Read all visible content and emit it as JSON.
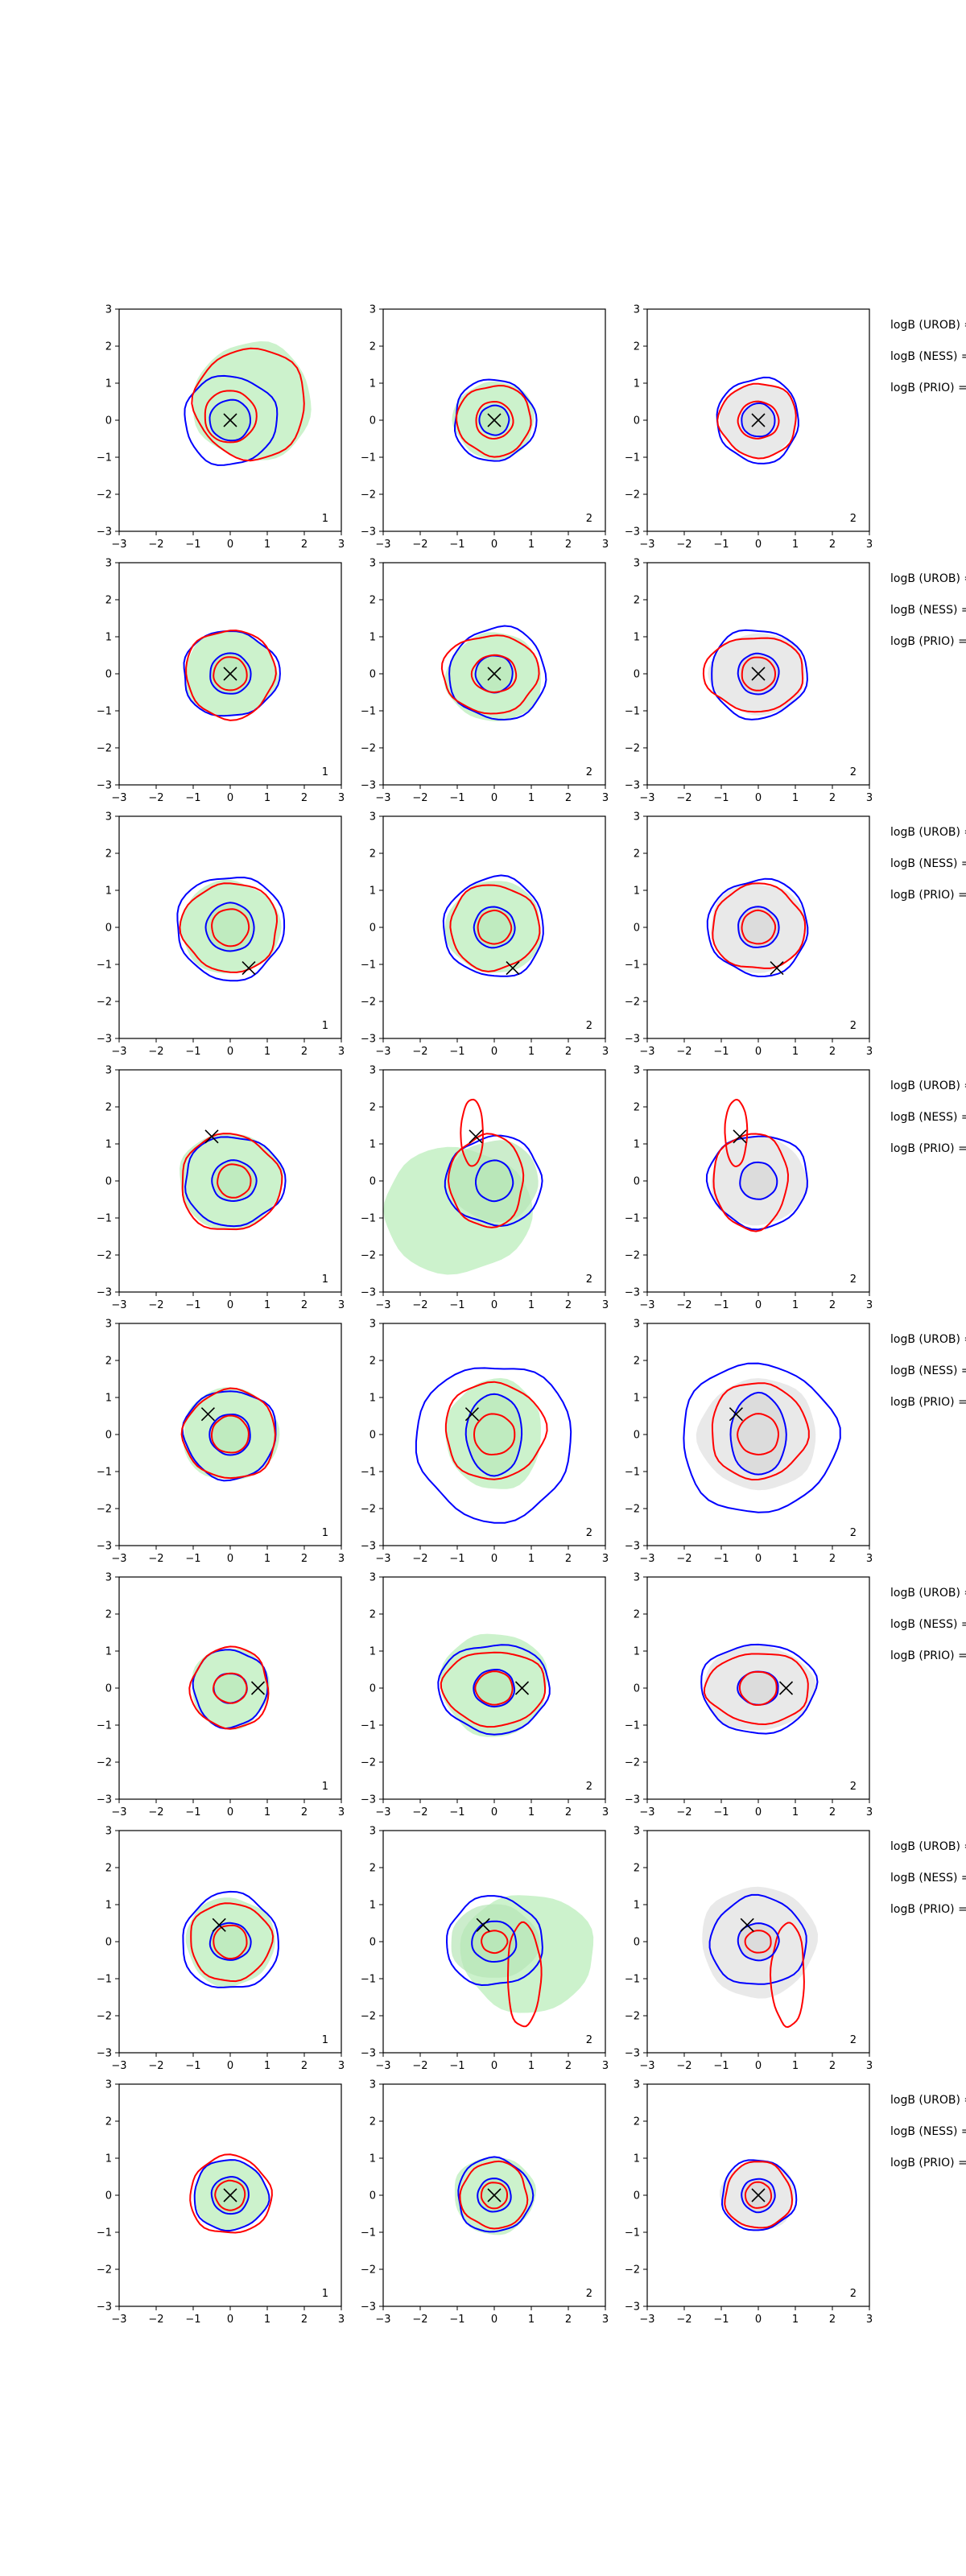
{
  "figure": {
    "xlim": [
      -3,
      3
    ],
    "ylim": [
      -3,
      3
    ],
    "ticks": [
      -3,
      -2,
      -1,
      0,
      1,
      2,
      3
    ],
    "row_labels": [
      "logB (UROB) =",
      "logB (NESS) =",
      "logB (PRIO) ="
    ]
  },
  "colors": {
    "posterior_fill": "#ccf2cc",
    "posterior_fill_dark": "#b6e6b6",
    "prior_fill": "#e9e9e9",
    "prior_fill_dark": "#d4d4d4",
    "contour_a": "#0000ff",
    "contour_b": "#ff0000",
    "marker": "#000000"
  },
  "chart_data": {
    "type": "contour",
    "description_columns": 3,
    "rows": [
      {
        "marker": [
          0.0,
          0.0
        ],
        "panels": [
          {
            "fill": "green",
            "corner_label": "1",
            "outer_blue": [
              0.0,
              0.0,
              1.25,
              1.2
            ],
            "outer_red": [
              0.55,
              0.45,
              1.5,
              1.5
            ],
            "inner_blue": [
              0.0,
              0.0,
              0.55,
              0.55
            ],
            "inner_red": [
              0.0,
              0.1,
              0.7,
              0.7
            ],
            "fill_shape": [
              0.6,
              0.5,
              1.6,
              1.6
            ]
          },
          {
            "fill": "green",
            "corner_label": "2",
            "outer_blue": [
              0.0,
              0.0,
              1.1,
              1.1
            ],
            "outer_red": [
              0.0,
              0.0,
              1.0,
              0.95
            ],
            "inner_blue": [
              0.0,
              0.0,
              0.4,
              0.4
            ],
            "inner_red": [
              0.0,
              0.0,
              0.5,
              0.5
            ],
            "fill_shape": [
              0.0,
              0.0,
              1.1,
              1.05
            ]
          },
          {
            "fill": "gray",
            "corner_label": "2",
            "outer_blue": [
              0.0,
              0.0,
              1.1,
              1.15
            ],
            "outer_red": [
              0.0,
              0.0,
              1.05,
              1.0
            ],
            "inner_blue": [
              0.0,
              0.0,
              0.45,
              0.45
            ],
            "inner_red": [
              0.0,
              0.0,
              0.55,
              0.5
            ],
            "fill_shape": [
              0.0,
              0.0,
              1.05,
              1.0
            ]
          }
        ]
      },
      {
        "marker": [
          0.0,
          0.0
        ],
        "panels": [
          {
            "fill": "green",
            "corner_label": "1",
            "outer_blue": [
              0.0,
              0.0,
              1.3,
              1.15
            ],
            "outer_red": [
              0.0,
              0.0,
              1.2,
              1.2
            ],
            "inner_blue": [
              0.0,
              0.0,
              0.55,
              0.55
            ],
            "inner_red": [
              0.0,
              0.0,
              0.45,
              0.45
            ],
            "fill_shape": [
              0.0,
              0.0,
              1.25,
              1.15
            ]
          },
          {
            "fill": "green",
            "corner_label": "2",
            "outer_blue": [
              0.1,
              0.0,
              1.3,
              1.25
            ],
            "outer_red": [
              -0.1,
              0.0,
              1.3,
              1.05
            ],
            "inner_blue": [
              0.0,
              0.0,
              0.5,
              0.5
            ],
            "inner_red": [
              0.0,
              0.0,
              0.6,
              0.5
            ],
            "fill_shape": [
              0.0,
              -0.1,
              1.3,
              1.2
            ]
          },
          {
            "fill": "gray",
            "corner_label": "2",
            "outer_blue": [
              0.0,
              0.0,
              1.3,
              1.2
            ],
            "outer_red": [
              -0.1,
              0.0,
              1.35,
              1.0
            ],
            "inner_blue": [
              0.0,
              0.0,
              0.55,
              0.55
            ],
            "inner_red": [
              0.0,
              0.0,
              0.45,
              0.45
            ],
            "fill_shape": [
              0.0,
              0.0,
              1.3,
              1.1
            ]
          }
        ]
      },
      {
        "marker": [
          0.5,
          -1.1
        ],
        "panels": [
          {
            "fill": "green",
            "corner_label": "1",
            "outer_blue": [
              0.0,
              0.0,
              1.45,
              1.4
            ],
            "outer_red": [
              0.0,
              0.0,
              1.3,
              1.2
            ],
            "inner_blue": [
              0.0,
              0.0,
              0.65,
              0.65
            ],
            "inner_red": [
              0.0,
              0.0,
              0.5,
              0.5
            ],
            "fill_shape": [
              0.0,
              0.0,
              1.35,
              1.25
            ]
          },
          {
            "fill": "green",
            "corner_label": "2",
            "outer_blue": [
              0.0,
              0.0,
              1.35,
              1.35
            ],
            "outer_red": [
              0.0,
              0.0,
              1.2,
              1.15
            ],
            "inner_blue": [
              0.0,
              0.0,
              0.55,
              0.55
            ],
            "inner_red": [
              0.0,
              0.0,
              0.45,
              0.45
            ],
            "fill_shape": [
              0.0,
              0.0,
              1.3,
              1.25
            ]
          },
          {
            "fill": "gray",
            "corner_label": "2",
            "outer_blue": [
              0.0,
              0.0,
              1.35,
              1.3
            ],
            "outer_red": [
              0.0,
              0.0,
              1.25,
              1.15
            ],
            "inner_blue": [
              0.0,
              0.0,
              0.55,
              0.55
            ],
            "inner_red": [
              0.0,
              0.0,
              0.45,
              0.45
            ],
            "fill_shape": [
              0.0,
              0.0,
              1.3,
              1.2
            ]
          }
        ]
      },
      {
        "marker": [
          -0.5,
          1.2
        ],
        "panels": [
          {
            "fill": "green",
            "corner_label": "1",
            "outer_blue": [
              0.1,
              0.0,
              1.35,
              1.2
            ],
            "outer_red": [
              0.0,
              -0.05,
              1.35,
              1.3
            ],
            "inner_blue": [
              0.1,
              0.0,
              0.6,
              0.55
            ],
            "inner_red": [
              0.1,
              0.0,
              0.45,
              0.45
            ],
            "fill_shape": [
              0.0,
              0.0,
              1.4,
              1.3
            ]
          },
          {
            "fill": "green",
            "corner_label": "2",
            "outer_blue": [
              0.0,
              0.0,
              1.3,
              1.2
            ],
            "outer_red": [
              -0.2,
              0.0,
              1.0,
              1.25
            ],
            "inner_blue": [
              0.0,
              0.0,
              0.5,
              0.55
            ],
            "inner_red": [
              -0.6,
              1.3,
              0.3,
              0.9
            ],
            "fill_shape": [
              -1.0,
              -0.8,
              2.0,
              1.7
            ],
            "fill_extra": [
              0.0,
              0.0,
              1.2,
              1.1
            ]
          },
          {
            "fill": "gray",
            "corner_label": "2",
            "outer_blue": [
              0.0,
              0.0,
              1.35,
              1.25
            ],
            "outer_red": [
              -0.2,
              0.0,
              1.0,
              1.3
            ],
            "inner_blue": [
              0.0,
              0.0,
              0.5,
              0.5
            ],
            "inner_red": [
              -0.6,
              1.3,
              0.3,
              0.9
            ],
            "fill_shape": [
              0.0,
              0.0,
              1.3,
              1.2
            ]
          }
        ]
      },
      {
        "marker": [
          -0.6,
          0.55
        ],
        "panels": [
          {
            "fill": "green",
            "corner_label": "1",
            "outer_blue": [
              0.0,
              0.0,
              1.25,
              1.2
            ],
            "outer_red": [
              0.0,
              0.0,
              1.25,
              1.2
            ],
            "inner_blue": [
              0.0,
              0.0,
              0.55,
              0.55
            ],
            "inner_red": [
              0.0,
              0.0,
              0.5,
              0.5
            ],
            "fill_shape": [
              0.0,
              0.0,
              1.3,
              1.25
            ]
          },
          {
            "fill": "green",
            "corner_label": "2",
            "outer_blue": [
              0.0,
              -0.2,
              2.1,
              2.1
            ],
            "outer_red": [
              0.0,
              0.1,
              1.35,
              1.3
            ],
            "inner_blue": [
              0.0,
              0.0,
              0.75,
              1.1
            ],
            "inner_red": [
              0.0,
              0.0,
              0.55,
              0.55
            ],
            "fill_shape": [
              0.0,
              0.0,
              1.3,
              1.5
            ]
          },
          {
            "fill": "gray",
            "corner_label": "2",
            "outer_blue": [
              0.0,
              -0.1,
              2.1,
              2.0
            ],
            "outer_red": [
              0.0,
              0.1,
              1.3,
              1.3
            ],
            "inner_blue": [
              0.0,
              0.0,
              0.75,
              1.1
            ],
            "inner_red": [
              0.0,
              0.0,
              0.55,
              0.55
            ],
            "fill_shape": [
              0.0,
              0.0,
              1.6,
              1.5
            ]
          }
        ]
      },
      {
        "marker": [
          0.75,
          0.0
        ],
        "panels": [
          {
            "fill": "green",
            "corner_label": "1",
            "outer_blue": [
              0.0,
              0.0,
              1.0,
              1.05
            ],
            "outer_red": [
              0.0,
              0.0,
              1.05,
              1.1
            ],
            "inner_blue": [
              0.0,
              0.0,
              0.45,
              0.4
            ],
            "inner_red": [
              0.0,
              0.0,
              0.45,
              0.4
            ],
            "fill_shape": [
              0.0,
              0.0,
              1.05,
              1.1
            ]
          },
          {
            "fill": "green",
            "corner_label": "2",
            "outer_blue": [
              0.0,
              0.0,
              1.5,
              1.2
            ],
            "outer_red": [
              0.0,
              0.0,
              1.4,
              1.0
            ],
            "inner_blue": [
              0.0,
              0.0,
              0.55,
              0.5
            ],
            "inner_red": [
              0.0,
              0.0,
              0.5,
              0.45
            ],
            "fill_shape": [
              0.0,
              0.1,
              1.45,
              1.4
            ]
          },
          {
            "fill": "gray",
            "corner_label": "2",
            "outer_blue": [
              0.0,
              0.0,
              1.55,
              1.2
            ],
            "outer_red": [
              0.0,
              0.0,
              1.4,
              0.95
            ],
            "inner_blue": [
              0.0,
              0.0,
              0.55,
              0.45
            ],
            "inner_red": [
              0.0,
              0.0,
              0.5,
              0.45
            ],
            "fill_shape": [
              0.0,
              0.0,
              1.5,
              1.15
            ]
          }
        ]
      },
      {
        "marker": [
          -0.3,
          0.45
        ],
        "panels": [
          {
            "fill": "green",
            "corner_label": "1",
            "outer_blue": [
              0.0,
              0.0,
              1.3,
              1.3
            ],
            "outer_red": [
              0.0,
              0.0,
              1.1,
              1.05
            ],
            "inner_blue": [
              0.0,
              0.0,
              0.55,
              0.5
            ],
            "inner_red": [
              0.0,
              0.0,
              0.45,
              0.45
            ],
            "fill_shape": [
              0.0,
              0.0,
              1.2,
              1.2
            ]
          },
          {
            "fill": "green",
            "corner_label": "2",
            "outer_blue": [
              0.0,
              0.0,
              1.3,
              1.2
            ],
            "outer_red": [
              0.8,
              -0.9,
              0.45,
              1.4
            ],
            "inner_blue": [
              0.0,
              0.0,
              0.6,
              0.55
            ],
            "inner_red": [
              0.0,
              0.0,
              0.35,
              0.3
            ],
            "fill_shape": [
              0.9,
              -0.3,
              1.8,
              1.6
            ],
            "fill_extra": [
              0.0,
              0.0,
              1.2,
              1.0
            ]
          },
          {
            "fill": "gray",
            "corner_label": "2",
            "outer_blue": [
              0.0,
              0.0,
              1.3,
              1.2
            ],
            "outer_red": [
              0.8,
              -0.9,
              0.45,
              1.4
            ],
            "inner_blue": [
              0.0,
              0.0,
              0.55,
              0.5
            ],
            "inner_red": [
              0.0,
              0.0,
              0.35,
              0.3
            ],
            "fill_shape": [
              0.0,
              0.0,
              1.55,
              1.5
            ]
          }
        ]
      },
      {
        "marker": [
          0.0,
          0.0
        ],
        "panels": [
          {
            "fill": "green",
            "corner_label": "1",
            "outer_blue": [
              0.0,
              0.0,
              1.0,
              0.95
            ],
            "outer_red": [
              0.0,
              0.0,
              1.1,
              1.05
            ],
            "inner_blue": [
              0.0,
              0.0,
              0.5,
              0.5
            ],
            "inner_red": [
              0.0,
              0.0,
              0.4,
              0.4
            ],
            "fill_shape": [
              0.0,
              0.0,
              1.0,
              0.95
            ]
          },
          {
            "fill": "green",
            "corner_label": "2",
            "outer_blue": [
              0.0,
              0.0,
              1.0,
              1.0
            ],
            "outer_red": [
              0.0,
              0.0,
              0.9,
              0.9
            ],
            "inner_blue": [
              0.0,
              0.0,
              0.45,
              0.45
            ],
            "inner_red": [
              0.0,
              0.0,
              0.35,
              0.35
            ],
            "fill_shape": [
              0.0,
              0.0,
              1.1,
              1.05
            ]
          },
          {
            "fill": "gray",
            "corner_label": "2",
            "outer_blue": [
              0.0,
              0.0,
              1.0,
              0.95
            ],
            "outer_red": [
              0.0,
              0.0,
              0.9,
              0.9
            ],
            "inner_blue": [
              0.0,
              0.0,
              0.45,
              0.45
            ],
            "inner_red": [
              0.0,
              0.0,
              0.35,
              0.35
            ],
            "fill_shape": [
              0.0,
              0.0,
              1.0,
              0.95
            ]
          }
        ]
      }
    ]
  }
}
